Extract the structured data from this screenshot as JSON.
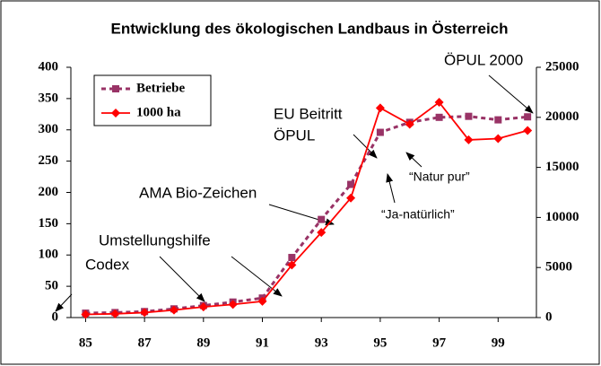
{
  "chart_data": {
    "type": "line",
    "title": "Entwicklung des ökologischen Landbaus in Österreich",
    "x": [
      85,
      86,
      87,
      88,
      89,
      90,
      91,
      92,
      93,
      94,
      95,
      96,
      97,
      98,
      99,
      100
    ],
    "xlim": [
      84.5,
      100.3
    ],
    "xticks": [
      85,
      87,
      89,
      91,
      93,
      95,
      97,
      99
    ],
    "ylim": [
      0,
      400
    ],
    "yticks": [
      0,
      50,
      100,
      150,
      200,
      250,
      300,
      350,
      400
    ],
    "y2lim": [
      0,
      25000
    ],
    "y2ticks": [
      0,
      5000,
      10000,
      15000,
      20000,
      25000
    ],
    "legend": "upper left",
    "series": [
      {
        "name": "Betriebe",
        "color": "#993366",
        "axis": "y2",
        "dash": true,
        "marker": "square",
        "values": [
          440,
          500,
          600,
          870,
          1200,
          1550,
          1950,
          6000,
          9800,
          13300,
          18500,
          19500,
          20000,
          20100,
          19750,
          20050
        ]
      },
      {
        "name": "1000 ha",
        "color": "#ff0000",
        "dash": false,
        "marker": "diamond",
        "values": [
          5,
          6,
          8,
          12,
          17,
          21,
          26,
          84,
          136,
          191,
          335,
          309,
          344,
          284,
          286,
          299
        ]
      }
    ],
    "annotations": [
      "Codex",
      "Umstellungshilfe",
      "AMA Bio-Zeichen",
      "EU Beitritt",
      "ÖPUL",
      "ÖPUL 2000",
      "“Natur pur”",
      "“Ja-natürlich”"
    ]
  }
}
